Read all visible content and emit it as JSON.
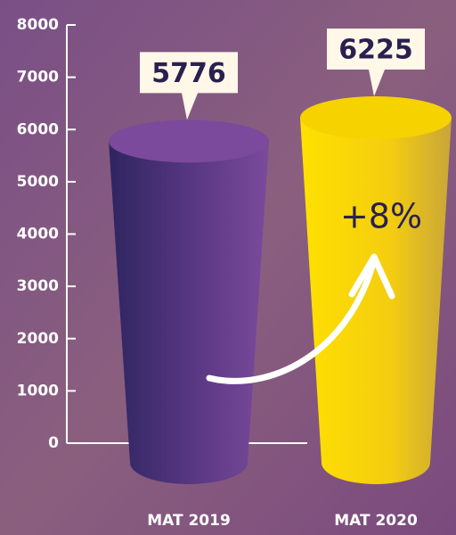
{
  "chart_data": {
    "type": "bar",
    "categories": [
      "MAT 2019",
      "MAT 2020"
    ],
    "values": [
      5776,
      6225
    ],
    "colors": [
      "#7b4a9c",
      "#f6d300"
    ],
    "ylim": [
      0,
      8000
    ],
    "yticks": [
      0,
      1000,
      2000,
      3000,
      4000,
      5000,
      6000,
      7000,
      8000
    ],
    "annotation": "+8%"
  }
}
